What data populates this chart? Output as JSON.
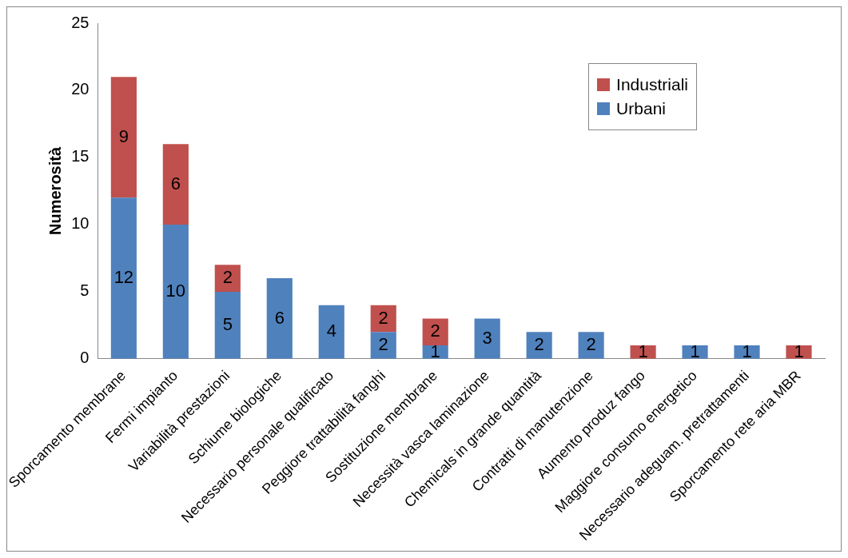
{
  "chart_data": {
    "type": "bar",
    "stacked": true,
    "ylabel": "Numerosità",
    "categories": [
      "Sporcamento membrane",
      "Fermi impianto",
      "Variabilità prestazioni",
      "Schiume biologiche",
      "Necessario personale qualificato",
      "Peggiore trattabilità fanghi",
      "Sostituzione membrane",
      "Necessità vasca laminazione",
      "Chemicals in grande quantità",
      "Contratti di manutenzione",
      "Aumento produz fango",
      "Maggiore consumo energetico",
      "Necessario adeguam. pretrattamenti",
      "Sporcamento rete aria MBR"
    ],
    "series": [
      {
        "name": "Urbani",
        "color": "#4f81bd",
        "values": [
          12,
          10,
          5,
          6,
          4,
          2,
          1,
          3,
          2,
          2,
          null,
          1,
          1,
          null
        ]
      },
      {
        "name": "Industriali",
        "color": "#c0504d",
        "values": [
          9,
          6,
          2,
          null,
          null,
          2,
          2,
          null,
          null,
          null,
          1,
          null,
          null,
          1
        ]
      }
    ],
    "ylim": [
      0,
      25
    ],
    "yticks": [
      0,
      5,
      10,
      15,
      20,
      25
    ],
    "grid": false,
    "legend": "top right",
    "data_labels": true
  }
}
